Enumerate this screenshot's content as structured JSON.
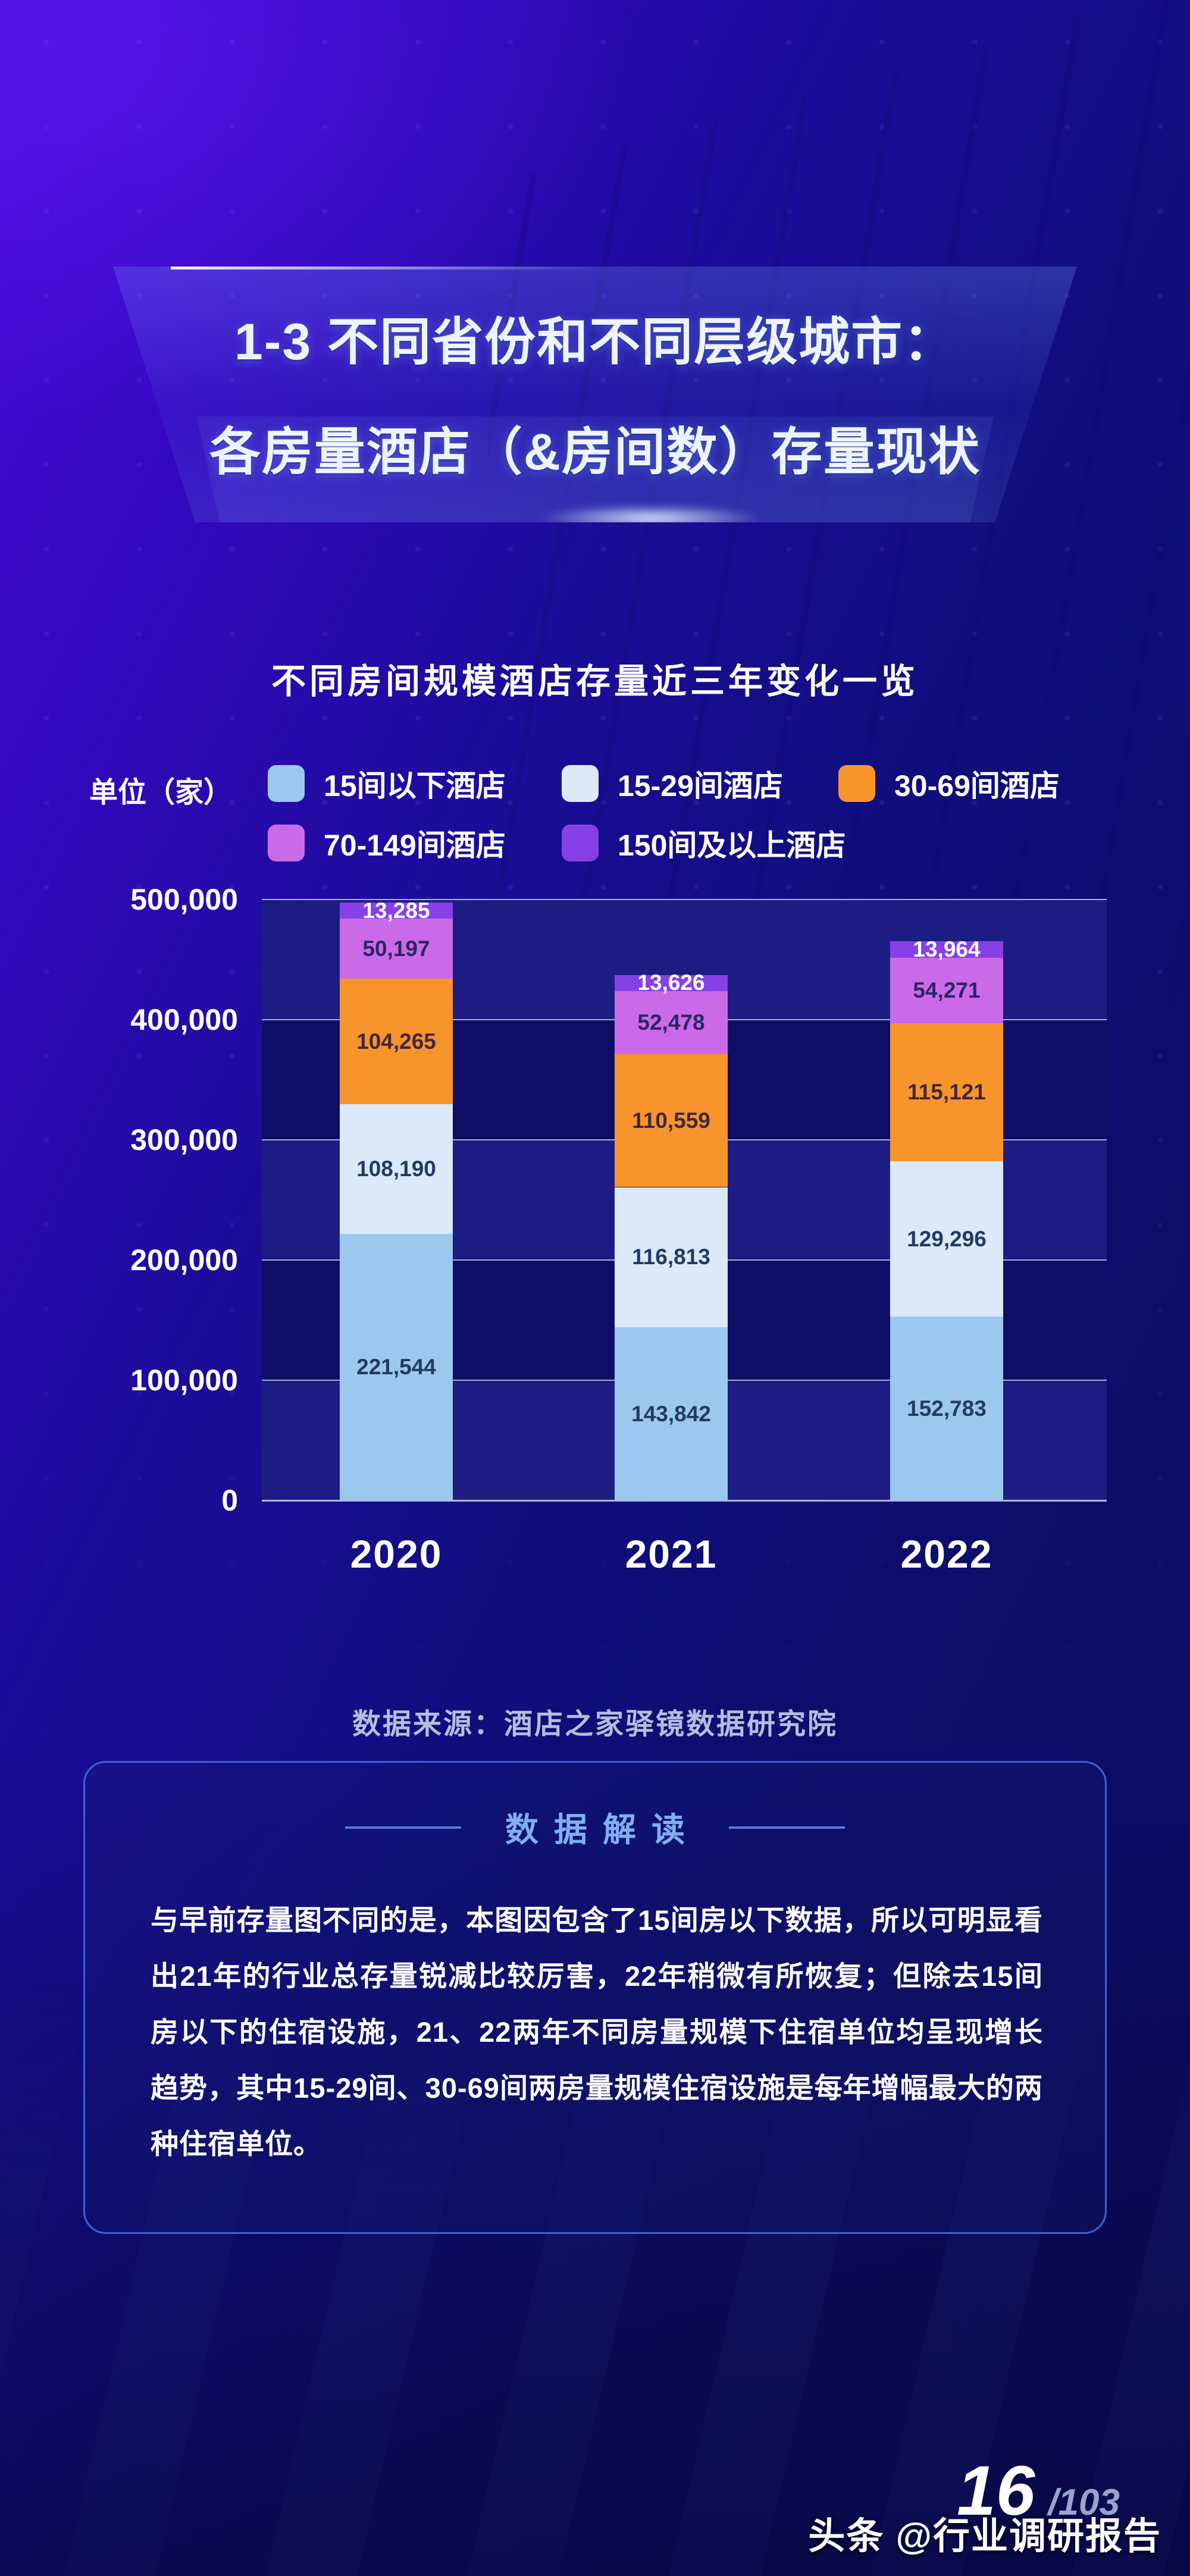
{
  "header": {
    "title_line1": "1-3 不同省份和不同层级城市：",
    "title_line2": "各房量酒店（&房间数）存量现状"
  },
  "chart": {
    "title": "不同房间规模酒店存量近三年变化一览",
    "unit_label": "单位（家）",
    "source": "数据来源：酒店之家驿镜数据研究院"
  },
  "chart_data": {
    "type": "bar",
    "stacked": true,
    "title": "不同房间规模酒店存量近三年变化一览",
    "categories": [
      "2020",
      "2021",
      "2022"
    ],
    "series": [
      {
        "name": "15间以下酒店",
        "color": "#9cc8f0",
        "label_color": "#233a66",
        "values": [
          221544,
          143842,
          152783
        ]
      },
      {
        "name": "15-29间酒店",
        "color": "#dce9f8",
        "label_color": "#233a66",
        "values": [
          108190,
          116813,
          129296
        ]
      },
      {
        "name": "30-69间酒店",
        "color": "#f7952c",
        "label_color": "#44263a",
        "values": [
          104265,
          110559,
          115121
        ]
      },
      {
        "name": "70-149间酒店",
        "color": "#cb6ae8",
        "label_color": "#2a2565",
        "values": [
          50197,
          52478,
          54271
        ]
      },
      {
        "name": "150间及以上酒店",
        "color": "#8640e6",
        "label_color": "#ffffff",
        "values": [
          13285,
          13626,
          13964
        ]
      }
    ],
    "ylim": [
      0,
      500000
    ],
    "yticks": [
      "500,000",
      "400,000",
      "300,000",
      "200,000",
      "100,000",
      "0"
    ],
    "grid": true,
    "legend_position": "top",
    "band_colors": {
      "light": "#1c1c82",
      "dark": "#0e0e66"
    }
  },
  "insight": {
    "title": "数据解读",
    "body": "与早前存量图不同的是，本图因包含了15间房以下数据，所以可明显看出21年的行业总存量锐减比较厉害，22年稍微有所恢复；但除去15间房以下的住宿设施，21、22两年不同房量规模下住宿单位均呈现增长趋势，其中15-29间、30-69间两房量规模住宿设施是每年增幅最大的两种住宿单位。"
  },
  "footer": {
    "page_number": "16",
    "page_total": "/103",
    "watermark": "头条 @行业调研报告"
  }
}
